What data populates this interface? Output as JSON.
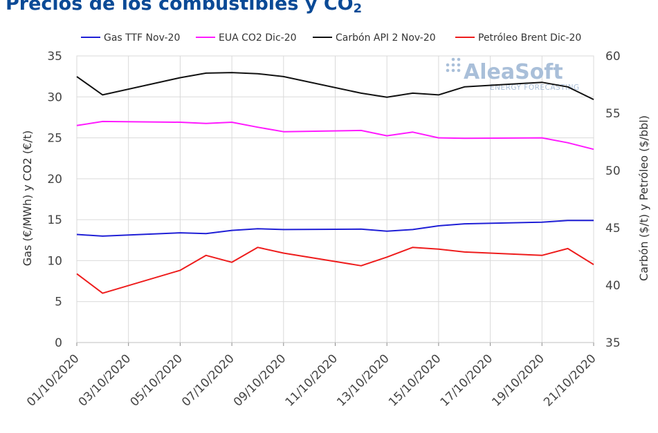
{
  "title": {
    "main": "Precios de los combustibles y CO",
    "sub": "2"
  },
  "watermark": {
    "name": "AleaSoft",
    "tagline": "ENERGY FORECASTING",
    "color": "#a9bfd9"
  },
  "chart_data": {
    "type": "line",
    "x": [
      "01/10/2020",
      "02/10/2020",
      "05/10/2020",
      "06/10/2020",
      "07/10/2020",
      "08/10/2020",
      "09/10/2020",
      "12/10/2020",
      "13/10/2020",
      "14/10/2020",
      "15/10/2020",
      "16/10/2020",
      "19/10/2020",
      "20/10/2020",
      "21/10/2020"
    ],
    "xticks": [
      "01/10/2020",
      "03/10/2020",
      "05/10/2020",
      "07/10/2020",
      "09/10/2020",
      "11/10/2020",
      "13/10/2020",
      "15/10/2020",
      "17/10/2020",
      "19/10/2020",
      "21/10/2020"
    ],
    "xlim": [
      "01/10/2020",
      "21/10/2020"
    ],
    "ylabel_left": "Gas (€/MWh) y CO2 (€/t)",
    "ylabel_right": "Carbón ($/t) y Petróleo ($/bbl)",
    "ylim_left": [
      0,
      35
    ],
    "yticks_left": [
      0,
      5,
      10,
      15,
      20,
      25,
      30,
      35
    ],
    "ylim_right": [
      35,
      60
    ],
    "yticks_right": [
      35,
      40,
      45,
      50,
      55,
      60
    ],
    "grid": true,
    "legend_position": "top",
    "series": [
      {
        "name": "Gas TTF Nov-20",
        "color": "#1f1fd6",
        "axis": "left",
        "values": [
          13.2,
          13.0,
          13.4,
          13.3,
          13.7,
          13.9,
          13.8,
          13.85,
          13.6,
          13.8,
          14.25,
          14.5,
          14.7,
          14.9,
          14.9
        ]
      },
      {
        "name": "EUA CO2 Dic-20",
        "color": "#ff1aff",
        "axis": "left",
        "values": [
          26.5,
          27.0,
          26.9,
          26.75,
          26.9,
          26.3,
          25.75,
          25.9,
          25.25,
          25.7,
          25.0,
          24.95,
          25.0,
          24.4,
          23.6
        ]
      },
      {
        "name": "Carbón API 2 Nov-20",
        "color": "#111111",
        "axis": "right",
        "values": [
          58.2,
          56.6,
          58.1,
          58.5,
          58.55,
          58.45,
          58.2,
          56.75,
          56.4,
          56.75,
          56.6,
          57.3,
          57.7,
          57.3,
          56.2
        ]
      },
      {
        "name": "Petróleo Brent Dic-20",
        "color": "#ee1c1c",
        "axis": "right",
        "values": [
          41.0,
          39.3,
          41.3,
          42.6,
          42.0,
          43.3,
          42.8,
          41.7,
          42.45,
          43.3,
          43.15,
          42.9,
          42.6,
          43.2,
          41.8
        ]
      }
    ]
  }
}
